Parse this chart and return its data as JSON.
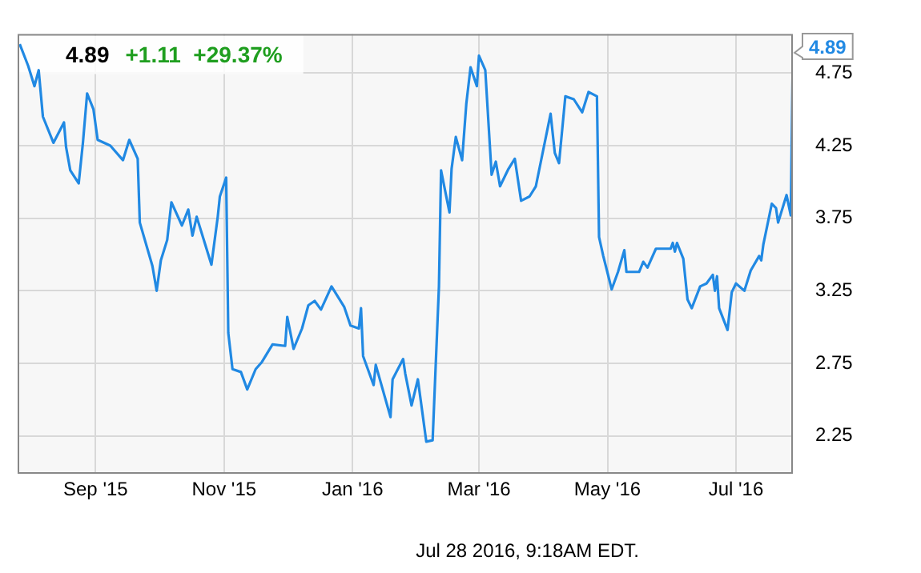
{
  "chart_data": {
    "type": "line",
    "title": "4.89",
    "subtitle": "+1.11  +29.37%",
    "x": [
      "2015-07-27",
      "2015-07-31",
      "2015-08-03",
      "2015-08-05",
      "2015-08-07",
      "2015-08-12",
      "2015-08-17",
      "2015-08-18",
      "2015-08-20",
      "2015-08-24",
      "2015-08-26",
      "2015-08-28",
      "2015-08-31",
      "2015-09-02",
      "2015-09-08",
      "2015-09-14",
      "2015-09-17",
      "2015-09-21",
      "2015-09-22",
      "2015-09-28",
      "2015-09-30",
      "2015-10-02",
      "2015-10-05",
      "2015-10-07",
      "2015-10-12",
      "2015-10-15",
      "2015-10-17",
      "2015-10-19",
      "2015-10-26",
      "2015-10-29",
      "2015-10-30",
      "2015-11-02",
      "2015-11-03",
      "2015-11-05",
      "2015-11-09",
      "2015-11-12",
      "2015-11-16",
      "2015-11-19",
      "2015-11-24",
      "2015-11-30",
      "2015-12-01",
      "2015-12-04",
      "2015-12-08",
      "2015-12-11",
      "2015-12-14",
      "2015-12-17",
      "2015-12-22",
      "2015-12-28",
      "2015-12-31",
      "2016-01-04",
      "2016-01-05",
      "2016-01-06",
      "2016-01-11",
      "2016-01-12",
      "2016-01-19",
      "2016-01-20",
      "2016-01-25",
      "2016-01-26",
      "2016-01-29",
      "2016-02-01",
      "2016-02-05",
      "2016-02-08",
      "2016-02-11",
      "2016-02-12",
      "2016-02-16",
      "2016-02-17",
      "2016-02-19",
      "2016-02-22",
      "2016-02-24",
      "2016-02-26",
      "2016-02-29",
      "2016-03-01",
      "2016-03-04",
      "2016-03-07",
      "2016-03-09",
      "2016-03-11",
      "2016-03-15",
      "2016-03-18",
      "2016-03-21",
      "2016-03-25",
      "2016-03-28",
      "2016-04-04",
      "2016-04-06",
      "2016-04-08",
      "2016-04-11",
      "2016-04-15",
      "2016-04-19",
      "2016-04-22",
      "2016-04-26",
      "2016-04-27",
      "2016-04-29",
      "2016-05-03",
      "2016-05-06",
      "2016-05-09",
      "2016-05-10",
      "2016-05-16",
      "2016-05-18",
      "2016-05-20",
      "2016-05-24",
      "2016-05-31",
      "2016-06-01",
      "2016-06-02",
      "2016-06-03",
      "2016-06-06",
      "2016-06-08",
      "2016-06-10",
      "2016-06-14",
      "2016-06-17",
      "2016-06-20",
      "2016-06-21",
      "2016-06-22",
      "2016-06-23",
      "2016-06-27",
      "2016-06-29",
      "2016-07-01",
      "2016-07-05",
      "2016-07-08",
      "2016-07-12",
      "2016-07-13",
      "2016-07-14",
      "2016-07-18",
      "2016-07-20",
      "2016-07-21",
      "2016-07-25",
      "2016-07-27",
      "2016-07-28"
    ],
    "series": [
      {
        "color": "#2189e3",
        "values": [
          4.95,
          4.8,
          4.66,
          4.77,
          4.45,
          4.27,
          4.41,
          4.24,
          4.08,
          3.99,
          4.27,
          4.61,
          4.5,
          4.29,
          4.25,
          4.15,
          4.29,
          4.16,
          3.72,
          3.42,
          3.25,
          3.46,
          3.6,
          3.86,
          3.7,
          3.81,
          3.63,
          3.76,
          3.43,
          3.76,
          3.9,
          4.03,
          2.96,
          2.71,
          2.69,
          2.57,
          2.71,
          2.76,
          2.88,
          2.87,
          3.07,
          2.85,
          2.99,
          3.15,
          3.18,
          3.12,
          3.28,
          3.14,
          3.01,
          2.99,
          3.13,
          2.8,
          2.6,
          2.74,
          2.38,
          2.64,
          2.78,
          2.68,
          2.46,
          2.64,
          2.21,
          2.22,
          3.28,
          4.08,
          3.79,
          4.09,
          4.31,
          4.15,
          4.54,
          4.79,
          4.66,
          4.87,
          4.77,
          4.05,
          4.14,
          3.97,
          4.09,
          4.16,
          3.87,
          3.9,
          3.97,
          4.47,
          4.2,
          4.13,
          4.59,
          4.57,
          4.48,
          4.62,
          4.59,
          3.62,
          3.49,
          3.26,
          3.38,
          3.53,
          3.38,
          3.38,
          3.45,
          3.41,
          3.54,
          3.54,
          3.58,
          3.52,
          3.58,
          3.47,
          3.19,
          3.13,
          3.28,
          3.3,
          3.36,
          3.25,
          3.35,
          3.13,
          2.98,
          3.24,
          3.3,
          3.25,
          3.39,
          3.49,
          3.46,
          3.57,
          3.85,
          3.82,
          3.72,
          3.91,
          3.77,
          4.89
        ]
      }
    ],
    "xlim": [
      "2015-07-26",
      "2016-07-28"
    ],
    "xticks": [
      {
        "value": "2015-09-01",
        "label": "Sep '15"
      },
      {
        "value": "2015-11-01",
        "label": "Nov '15"
      },
      {
        "value": "2016-01-01",
        "label": "Jan '16"
      },
      {
        "value": "2016-03-01",
        "label": "Mar '16"
      },
      {
        "value": "2016-05-01",
        "label": "May '16"
      },
      {
        "value": "2016-07-01",
        "label": "Jul '16"
      }
    ],
    "ylim": [
      2.0,
      5.02
    ],
    "yticks": [
      2.25,
      2.75,
      3.25,
      3.75,
      4.25,
      4.75
    ],
    "grid": true,
    "marker": "none",
    "annotations": [
      {
        "text": "4.89",
        "x": "2016-07-28",
        "y": 4.89
      },
      "Jul 28 2016, 9:18AM EDT."
    ]
  }
}
